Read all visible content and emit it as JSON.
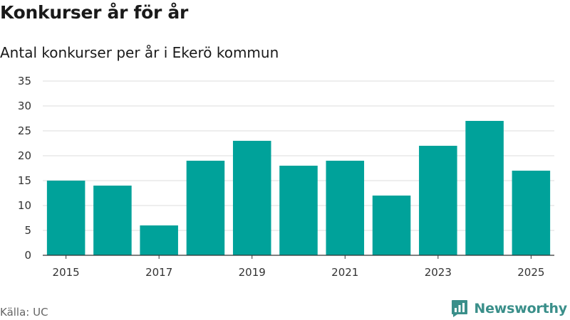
{
  "chart_data": {
    "type": "bar",
    "title": "Konkurser år för år",
    "subtitle": "Antal konkurser per år i Ekerö kommun",
    "categories": [
      2015,
      2016,
      2017,
      2018,
      2019,
      2020,
      2021,
      2022,
      2023,
      2024,
      2025
    ],
    "x_tick_labels": [
      "2015",
      "2017",
      "2019",
      "2021",
      "2023",
      "2025"
    ],
    "values": [
      15,
      14,
      6,
      19,
      23,
      18,
      19,
      12,
      22,
      27,
      17
    ],
    "ylim": [
      0,
      35
    ],
    "y_ticks": [
      0,
      5,
      10,
      15,
      20,
      25,
      30,
      35
    ],
    "grid": true,
    "bar_color": "#00a29a",
    "xlabel": "",
    "ylabel": ""
  },
  "footer": {
    "source": "Källa: UC",
    "brand": "Newsworthy",
    "brand_icon": "newsworthy-logo-icon"
  },
  "colors": {
    "grid": "#dddddd",
    "axis": "#333333",
    "brand": "#3a8f8a"
  }
}
